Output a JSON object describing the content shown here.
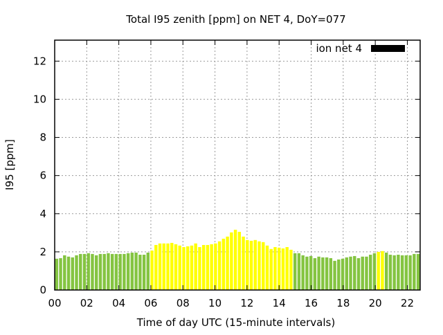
{
  "chart_data": {
    "type": "bar",
    "title": "Total I95 zenith [ppm] on NET 4, DoY=077",
    "xlabel": "Time of day UTC (15-minute intervals)",
    "ylabel": "I95 [ppm]",
    "ylim": [
      0,
      13.1
    ],
    "xlim_hours": [
      0,
      22.8
    ],
    "yticks": [
      "0",
      "2",
      "4",
      "6",
      "8",
      "10",
      "12"
    ],
    "xticks": [
      "00",
      "02",
      "04",
      "06",
      "08",
      "10",
      "12",
      "14",
      "16",
      "18",
      "20",
      "22"
    ],
    "grid": true,
    "legend": {
      "label": "ion net 4",
      "color": "#000000",
      "placement": "top-right"
    },
    "colors": {
      "normal": "#84c441",
      "elevated": "#ffff00"
    },
    "values": [
      1.64,
      1.67,
      1.82,
      1.75,
      1.71,
      1.82,
      1.89,
      1.89,
      1.93,
      1.89,
      1.82,
      1.89,
      1.89,
      1.93,
      1.89,
      1.89,
      1.89,
      1.89,
      1.93,
      1.96,
      1.96,
      1.85,
      1.85,
      1.96,
      2.07,
      2.36,
      2.44,
      2.44,
      2.44,
      2.47,
      2.4,
      2.33,
      2.25,
      2.29,
      2.33,
      2.44,
      2.25,
      2.36,
      2.36,
      2.4,
      2.44,
      2.55,
      2.69,
      2.8,
      3.02,
      3.16,
      3.05,
      2.8,
      2.62,
      2.58,
      2.62,
      2.55,
      2.51,
      2.33,
      2.15,
      2.25,
      2.22,
      2.18,
      2.25,
      2.11,
      1.93,
      1.93,
      1.82,
      1.75,
      1.78,
      1.67,
      1.75,
      1.71,
      1.71,
      1.67,
      1.53,
      1.6,
      1.64,
      1.71,
      1.75,
      1.78,
      1.67,
      1.75,
      1.75,
      1.85,
      1.93,
      2.0,
      2.04,
      1.96,
      1.85,
      1.82,
      1.85,
      1.82,
      1.82,
      1.82,
      1.89,
      1.89
    ],
    "category": [
      "g",
      "g",
      "g",
      "g",
      "g",
      "g",
      "g",
      "g",
      "g",
      "g",
      "g",
      "g",
      "g",
      "g",
      "g",
      "g",
      "g",
      "g",
      "g",
      "g",
      "g",
      "g",
      "g",
      "g",
      "y",
      "y",
      "y",
      "y",
      "y",
      "y",
      "y",
      "y",
      "y",
      "y",
      "y",
      "y",
      "y",
      "y",
      "y",
      "y",
      "y",
      "y",
      "y",
      "y",
      "y",
      "y",
      "y",
      "y",
      "y",
      "y",
      "y",
      "y",
      "y",
      "y",
      "y",
      "y",
      "y",
      "y",
      "y",
      "y",
      "g",
      "g",
      "g",
      "g",
      "g",
      "g",
      "g",
      "g",
      "g",
      "g",
      "g",
      "g",
      "g",
      "g",
      "g",
      "g",
      "g",
      "g",
      "g",
      "g",
      "g",
      "y",
      "y",
      "g",
      "g",
      "g",
      "g",
      "g",
      "g",
      "g",
      "g",
      "g"
    ]
  }
}
